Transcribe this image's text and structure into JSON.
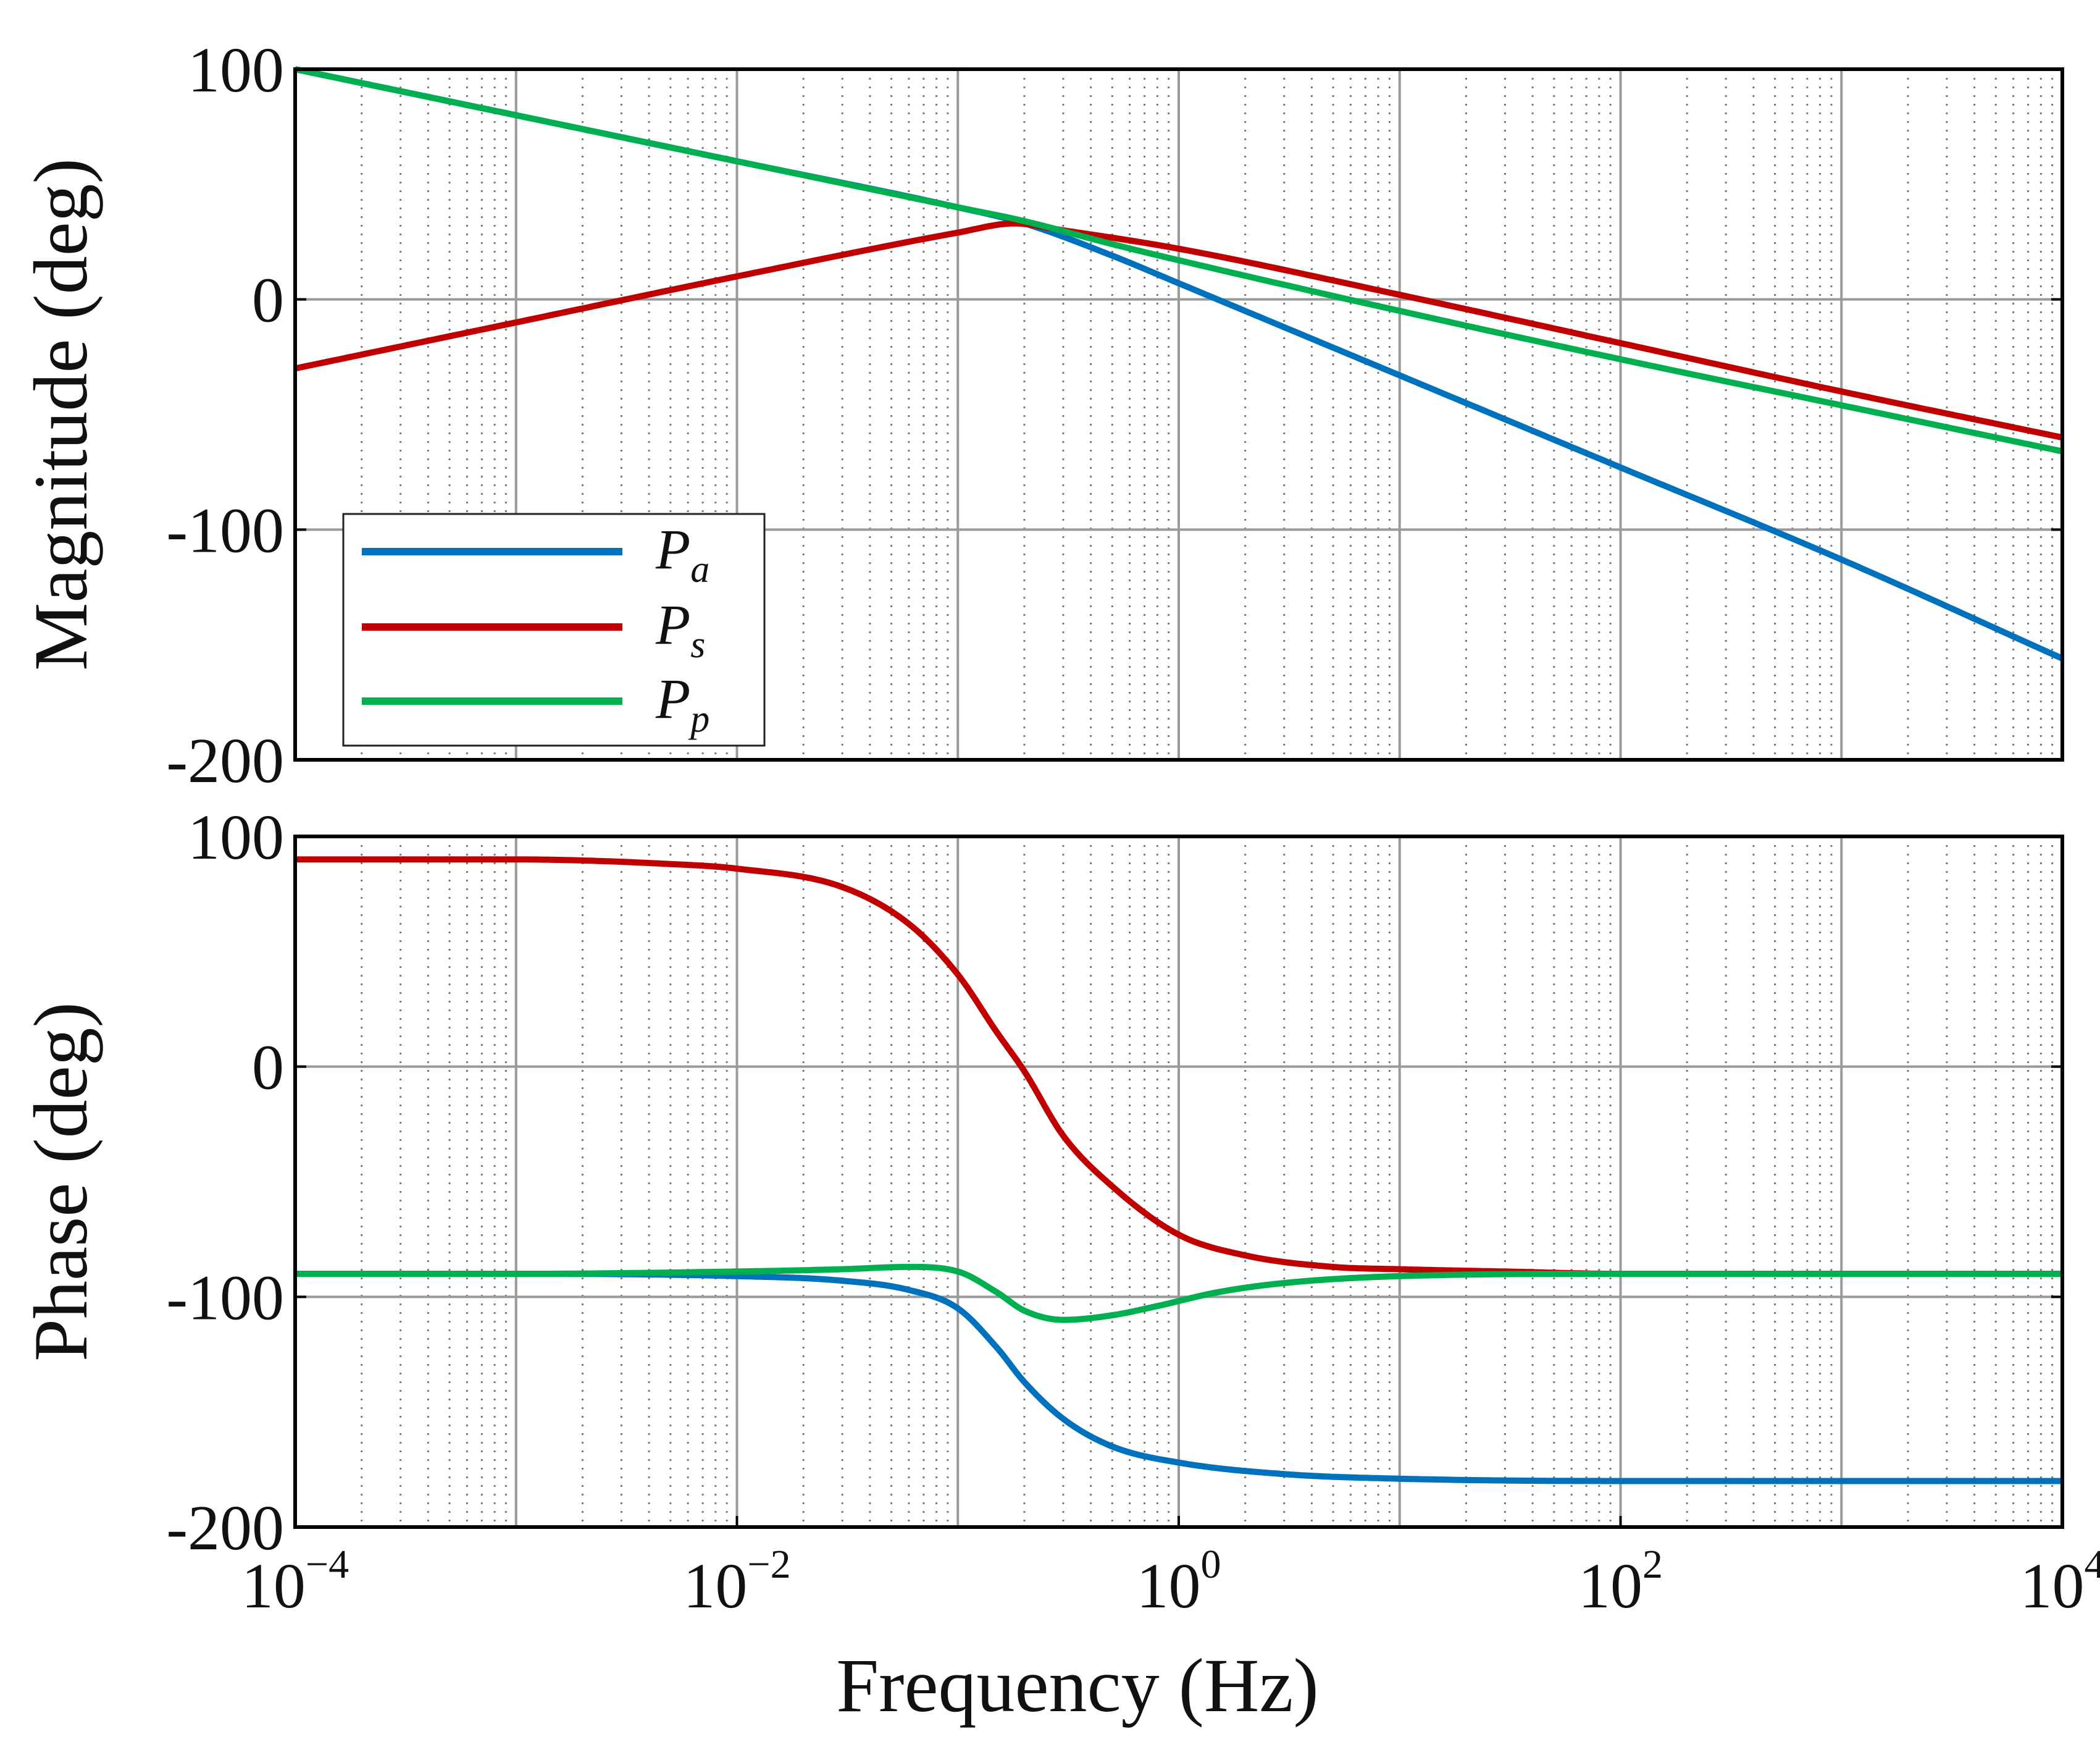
{
  "chart_data": [
    {
      "type": "line",
      "panel": "magnitude",
      "ylabel": "Magnitude (deg)",
      "xscale": "log",
      "xlim": [
        0.0001,
        10000
      ],
      "ylim": [
        -200,
        100
      ],
      "yticks": [
        100,
        0,
        -100,
        -200
      ],
      "ytick_labels": [
        "100",
        "0",
        "-100",
        "-200"
      ],
      "grid": true,
      "legend": {
        "placement": "bottom-left",
        "entries": [
          {
            "letter": "P",
            "sub": "a",
            "series": "Pa"
          },
          {
            "letter": "P",
            "sub": "s",
            "series": "Ps"
          },
          {
            "letter": "P",
            "sub": "p",
            "series": "Pp"
          }
        ]
      },
      "series": [
        {
          "name": "Pa",
          "color": "#0072bd",
          "x": [
            0.0001,
            0.001,
            0.01,
            0.1,
            0.2,
            0.5,
            1,
            10,
            100,
            1000,
            10000
          ],
          "y": [
            100,
            80,
            60,
            40,
            33,
            19,
            7,
            -33,
            -73,
            -113,
            -156
          ]
        },
        {
          "name": "Ps",
          "color": "#c00000",
          "x": [
            0.0001,
            0.001,
            0.01,
            0.1,
            0.18,
            0.3,
            1,
            10,
            100,
            1000,
            10000
          ],
          "y": [
            -30,
            -10,
            10,
            29,
            33,
            30,
            22,
            2,
            -19,
            -40,
            -60
          ]
        },
        {
          "name": "Pp",
          "color": "#00b050",
          "x": [
            0.0001,
            0.001,
            0.01,
            0.1,
            0.2,
            0.5,
            1,
            10,
            100,
            1000,
            10000
          ],
          "y": [
            100,
            80,
            60,
            40,
            34,
            24,
            17,
            -5,
            -26,
            -46,
            -66
          ]
        }
      ]
    },
    {
      "type": "line",
      "panel": "phase",
      "ylabel": "Phase (deg)",
      "xlabel": "Frequency (Hz)",
      "xscale": "log",
      "xlim": [
        0.0001,
        10000
      ],
      "ylim": [
        -200,
        100
      ],
      "yticks": [
        100,
        0,
        -100,
        -200
      ],
      "ytick_labels": [
        "100",
        "0",
        "-100",
        "-200"
      ],
      "xticks": [
        0.0001,
        0.01,
        1,
        100,
        10000
      ],
      "xtick_labels": [
        {
          "base": "10",
          "exp": "−4"
        },
        {
          "base": "10",
          "exp": "−2"
        },
        {
          "base": "10",
          "exp": "0"
        },
        {
          "base": "10",
          "exp": "2"
        },
        {
          "base": "10",
          "exp": "4"
        }
      ],
      "grid": true,
      "series": [
        {
          "name": "Pa",
          "color": "#0072bd",
          "x": [
            0.0001,
            0.001,
            0.01,
            0.03,
            0.06,
            0.1,
            0.15,
            0.2,
            0.3,
            0.5,
            1,
            3,
            10,
            100,
            1000,
            10000
          ],
          "y": [
            -90,
            -90,
            -91,
            -93,
            -97,
            -105,
            -122,
            -137,
            -153,
            -165,
            -172,
            -177,
            -179,
            -180,
            -180,
            -180
          ]
        },
        {
          "name": "Ps",
          "color": "#c00000",
          "x": [
            0.0001,
            0.001,
            0.005,
            0.01,
            0.03,
            0.06,
            0.1,
            0.15,
            0.2,
            0.3,
            0.5,
            1,
            2,
            5,
            10,
            30,
            100,
            1000,
            10000
          ],
          "y": [
            90,
            90,
            88,
            86,
            78,
            62,
            40,
            15,
            -2,
            -30,
            -52,
            -73,
            -82,
            -87,
            -88,
            -89,
            -90,
            -90,
            -90
          ]
        },
        {
          "name": "Pp",
          "color": "#00b050",
          "x": [
            0.0001,
            0.001,
            0.01,
            0.03,
            0.06,
            0.1,
            0.15,
            0.2,
            0.3,
            0.5,
            0.8,
            1.5,
            3,
            10,
            100,
            1000,
            10000
          ],
          "y": [
            -90,
            -90,
            -89,
            -88,
            -87,
            -89,
            -98,
            -106,
            -110,
            -108,
            -104,
            -98,
            -94,
            -91,
            -90,
            -90,
            -90
          ]
        }
      ]
    }
  ]
}
